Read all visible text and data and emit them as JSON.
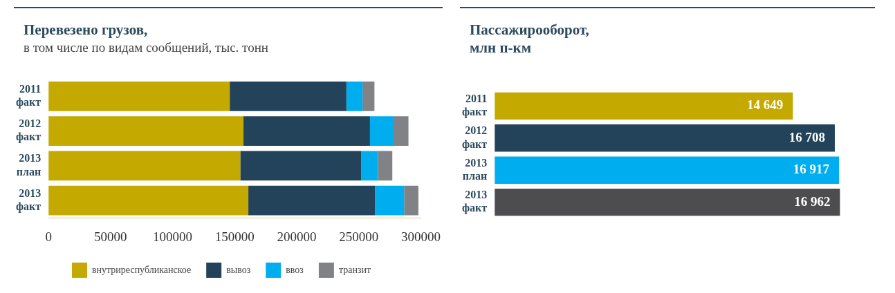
{
  "chart_data": [
    {
      "type": "bar",
      "orientation": "horizontal",
      "stacked": true,
      "title": "Перевезено грузов,",
      "subtitle": "в том числе по видам сообщений, тыс. тонн",
      "categories": [
        "2011\nфакт",
        "2012\nфакт",
        "2013\nплан",
        "2013\nфакт"
      ],
      "xlim": [
        0,
        300000
      ],
      "xticks": [
        0,
        50000,
        100000,
        150000,
        200000,
        250000,
        300000
      ],
      "grid": false,
      "legend": "bottom",
      "series": [
        {
          "name": "внутриреспубликанское",
          "color": "#c4a900",
          "values": [
            146000,
            157000,
            154500,
            161000
          ]
        },
        {
          "name": "вывоз",
          "color": "#22435a",
          "values": [
            94000,
            102000,
            97500,
            102000
          ]
        },
        {
          "name": "ввоз",
          "color": "#00aeef",
          "values": [
            13000,
            19000,
            13500,
            23500
          ]
        },
        {
          "name": "транзит",
          "color": "#808285",
          "values": [
            9600,
            12000,
            11500,
            11500
          ]
        }
      ]
    },
    {
      "type": "bar",
      "orientation": "horizontal",
      "title": "Пассажирооборот,\nмлн п-км",
      "categories": [
        "2011\nфакт",
        "2012\nфакт",
        "2013\nплан",
        "2013\nфакт"
      ],
      "tick_labels": "y",
      "grid": false,
      "legend": false,
      "values": [
        14649,
        16708,
        16917,
        16962
      ],
      "value_labels": [
        "14 649",
        "16 708",
        "16 917",
        "16 962"
      ],
      "colors": [
        "#c4a900",
        "#22435a",
        "#00aeef",
        "#4d4d4f"
      ]
    }
  ]
}
